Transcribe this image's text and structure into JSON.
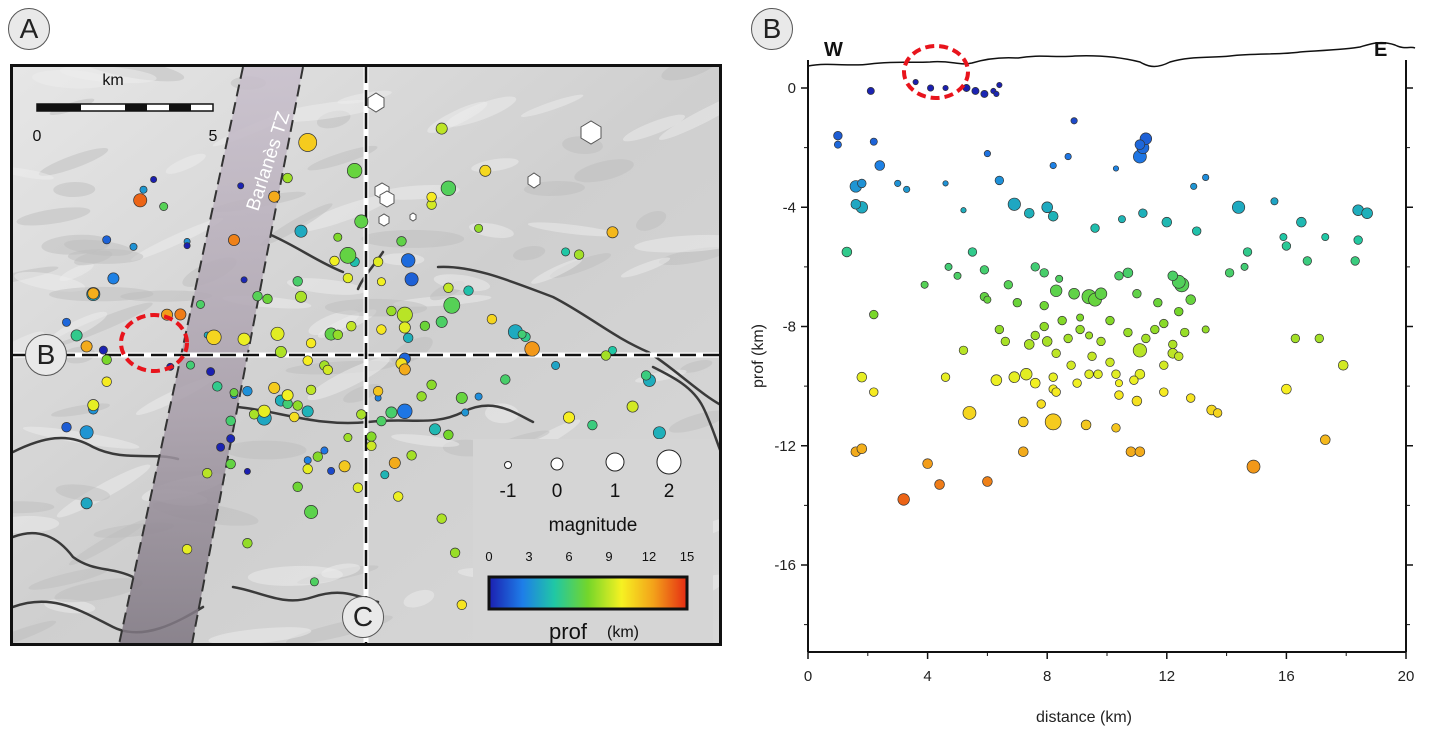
{
  "panels": {
    "a_label": "A",
    "b_label": "B"
  },
  "map": {
    "scale_unit": "km",
    "scale_ticks": [
      "0",
      "5"
    ],
    "fault_zone_label": "Barlanès TZ",
    "profile_start_label": "B",
    "profile_end_label": "C",
    "legend": {
      "magnitude_title": "magnitude",
      "magnitude_labels": [
        "-1",
        "0",
        "1",
        "2"
      ],
      "depth_ticks": [
        "0",
        "3",
        "6",
        "9",
        "12",
        "15"
      ],
      "depth_title": "prof",
      "depth_unit": "(km)"
    },
    "colors": {
      "shaded_relief": "#cfcfcf",
      "fault_zone": "#b9aebb",
      "profile_lines": "#ffffff",
      "highlight_circle": "#e8141c"
    }
  },
  "chart_data": {
    "type": "scatter",
    "title": "",
    "xlabel": "distance (km)",
    "ylabel": "prof (km)",
    "xlim": [
      0,
      20
    ],
    "ylim": [
      -19,
      1
    ],
    "xticks": [
      "0",
      "4",
      "8",
      "12",
      "16",
      "20"
    ],
    "yticks": [
      "0",
      "-4",
      "-8",
      "-12",
      "-16"
    ],
    "side_labels": {
      "west": "W",
      "east": "E"
    },
    "color_scale": {
      "variable": "depth (km)",
      "min": 0,
      "max": 15,
      "colors": [
        "#1b1fb0",
        "#1e7ee8",
        "#20c7a5",
        "#74d62a",
        "#f6f122",
        "#f3a21a",
        "#e52b13"
      ]
    },
    "points": [
      {
        "x": 1.0,
        "y": -1.6,
        "m": -0.5
      },
      {
        "x": 1.0,
        "y": -1.9,
        "m": -0.8
      },
      {
        "x": 2.2,
        "y": -1.8,
        "m": -0.8
      },
      {
        "x": 2.4,
        "y": -2.6,
        "m": -0.2
      },
      {
        "x": 1.6,
        "y": -3.3,
        "m": 0.2
      },
      {
        "x": 1.8,
        "y": -3.2,
        "m": -0.5
      },
      {
        "x": 1.6,
        "y": -3.9,
        "m": -0.2
      },
      {
        "x": 1.8,
        "y": -4.0,
        "m": 0.2
      },
      {
        "x": 1.3,
        "y": -5.5,
        "m": -0.2
      },
      {
        "x": 3.0,
        "y": -3.2,
        "m": -1.0
      },
      {
        "x": 3.3,
        "y": -3.4,
        "m": -1.0
      },
      {
        "x": 4.6,
        "y": -3.2,
        "m": -1.2
      },
      {
        "x": 5.2,
        "y": -4.1,
        "m": -1.2
      },
      {
        "x": 6.4,
        "y": -3.1,
        "m": -0.5
      },
      {
        "x": 6.9,
        "y": -3.9,
        "m": 0.4
      },
      {
        "x": 7.4,
        "y": -4.2,
        "m": -0.2
      },
      {
        "x": 8.0,
        "y": -4.0,
        "m": 0.0
      },
      {
        "x": 8.2,
        "y": -4.3,
        "m": -0.2
      },
      {
        "x": 8.2,
        "y": -2.6,
        "m": -1.0
      },
      {
        "x": 8.7,
        "y": -2.3,
        "m": -1.0
      },
      {
        "x": 8.9,
        "y": -1.1,
        "m": -1.0
      },
      {
        "x": 6.0,
        "y": -2.2,
        "m": -1.0
      },
      {
        "x": 9.6,
        "y": -4.7,
        "m": -0.5
      },
      {
        "x": 10.5,
        "y": -4.4,
        "m": -0.8
      },
      {
        "x": 10.3,
        "y": -2.7,
        "m": -1.2
      },
      {
        "x": 11.1,
        "y": -2.3,
        "m": 0.5
      },
      {
        "x": 11.2,
        "y": -2.0,
        "m": 0.3
      },
      {
        "x": 11.3,
        "y": -1.7,
        "m": 0.2
      },
      {
        "x": 11.1,
        "y": -1.9,
        "m": -0.2
      },
      {
        "x": 11.2,
        "y": -4.2,
        "m": -0.5
      },
      {
        "x": 12.0,
        "y": -4.5,
        "m": -0.2
      },
      {
        "x": 12.9,
        "y": -3.3,
        "m": -1.0
      },
      {
        "x": 13.3,
        "y": -3.0,
        "m": -1.0
      },
      {
        "x": 13.0,
        "y": -4.8,
        "m": -0.5
      },
      {
        "x": 14.4,
        "y": -4.0,
        "m": 0.4
      },
      {
        "x": 14.7,
        "y": -5.5,
        "m": -0.5
      },
      {
        "x": 15.6,
        "y": -3.8,
        "m": -0.8
      },
      {
        "x": 15.9,
        "y": -5.0,
        "m": -0.8
      },
      {
        "x": 16.5,
        "y": -4.5,
        "m": -0.2
      },
      {
        "x": 16.7,
        "y": -5.8,
        "m": -0.5
      },
      {
        "x": 17.3,
        "y": -5.0,
        "m": -0.8
      },
      {
        "x": 18.4,
        "y": -4.1,
        "m": 0.0
      },
      {
        "x": 18.7,
        "y": -4.2,
        "m": 0.0
      },
      {
        "x": 18.4,
        "y": -5.1,
        "m": -0.5
      },
      {
        "x": 18.3,
        "y": -5.8,
        "m": -0.5
      },
      {
        "x": 16.0,
        "y": -5.3,
        "m": -0.5
      },
      {
        "x": 14.1,
        "y": -6.2,
        "m": -0.5
      },
      {
        "x": 14.6,
        "y": -6.0,
        "m": -0.8
      },
      {
        "x": 5.5,
        "y": -5.5,
        "m": -0.5
      },
      {
        "x": 5.9,
        "y": -6.1,
        "m": -0.5
      },
      {
        "x": 5.0,
        "y": -6.3,
        "m": -0.8
      },
      {
        "x": 4.7,
        "y": -6.0,
        "m": -0.8
      },
      {
        "x": 6.7,
        "y": -6.6,
        "m": -0.5
      },
      {
        "x": 7.6,
        "y": -6.0,
        "m": -0.5
      },
      {
        "x": 7.9,
        "y": -6.2,
        "m": -0.5
      },
      {
        "x": 8.4,
        "y": -6.4,
        "m": -0.8
      },
      {
        "x": 8.3,
        "y": -6.8,
        "m": 0.2
      },
      {
        "x": 8.9,
        "y": -6.9,
        "m": 0.0
      },
      {
        "x": 9.4,
        "y": -7.0,
        "m": 0.8
      },
      {
        "x": 9.6,
        "y": -7.1,
        "m": 0.5
      },
      {
        "x": 9.8,
        "y": -6.9,
        "m": 0.2
      },
      {
        "x": 10.4,
        "y": -6.3,
        "m": -0.5
      },
      {
        "x": 10.7,
        "y": -6.2,
        "m": -0.2
      },
      {
        "x": 11.0,
        "y": -6.9,
        "m": -0.5
      },
      {
        "x": 12.2,
        "y": -6.3,
        "m": -0.2
      },
      {
        "x": 12.4,
        "y": -6.5,
        "m": 0.5
      },
      {
        "x": 12.5,
        "y": -6.6,
        "m": 0.8
      },
      {
        "x": 12.8,
        "y": -7.1,
        "m": -0.2
      },
      {
        "x": 12.4,
        "y": -7.5,
        "m": -0.5
      },
      {
        "x": 11.7,
        "y": -7.2,
        "m": -0.5
      },
      {
        "x": 5.9,
        "y": -7.0,
        "m": -0.5
      },
      {
        "x": 6.0,
        "y": -7.1,
        "m": -0.8
      },
      {
        "x": 3.9,
        "y": -6.6,
        "m": -0.8
      },
      {
        "x": 2.2,
        "y": -7.6,
        "m": -0.5
      },
      {
        "x": 7.0,
        "y": -7.2,
        "m": -0.5
      },
      {
        "x": 7.9,
        "y": -7.3,
        "m": -0.5
      },
      {
        "x": 8.5,
        "y": -7.8,
        "m": -0.5
      },
      {
        "x": 9.1,
        "y": -7.7,
        "m": -0.8
      },
      {
        "x": 7.9,
        "y": -8.0,
        "m": -0.5
      },
      {
        "x": 7.6,
        "y": -8.3,
        "m": -0.5
      },
      {
        "x": 7.4,
        "y": -8.6,
        "m": -0.2
      },
      {
        "x": 8.0,
        "y": -8.5,
        "m": -0.2
      },
      {
        "x": 8.3,
        "y": -8.9,
        "m": -0.5
      },
      {
        "x": 8.7,
        "y": -8.4,
        "m": -0.5
      },
      {
        "x": 9.1,
        "y": -8.1,
        "m": -0.5
      },
      {
        "x": 9.4,
        "y": -8.3,
        "m": -0.8
      },
      {
        "x": 9.8,
        "y": -8.5,
        "m": -0.5
      },
      {
        "x": 10.1,
        "y": -7.8,
        "m": -0.5
      },
      {
        "x": 10.7,
        "y": -8.2,
        "m": -0.5
      },
      {
        "x": 11.1,
        "y": -8.8,
        "m": 0.6
      },
      {
        "x": 11.3,
        "y": -8.4,
        "m": -0.5
      },
      {
        "x": 11.6,
        "y": -8.1,
        "m": -0.5
      },
      {
        "x": 11.9,
        "y": -7.9,
        "m": -0.5
      },
      {
        "x": 12.2,
        "y": -8.6,
        "m": -0.5
      },
      {
        "x": 12.6,
        "y": -8.2,
        "m": -0.5
      },
      {
        "x": 13.3,
        "y": -8.1,
        "m": -0.8
      },
      {
        "x": 12.2,
        "y": -8.9,
        "m": -0.2
      },
      {
        "x": 12.4,
        "y": -9.0,
        "m": -0.5
      },
      {
        "x": 6.4,
        "y": -8.1,
        "m": -0.5
      },
      {
        "x": 6.6,
        "y": -8.5,
        "m": -0.5
      },
      {
        "x": 5.2,
        "y": -8.8,
        "m": -0.5
      },
      {
        "x": 8.8,
        "y": -9.3,
        "m": -0.5
      },
      {
        "x": 9.5,
        "y": -9.0,
        "m": -0.5
      },
      {
        "x": 10.1,
        "y": -9.2,
        "m": -0.5
      },
      {
        "x": 11.1,
        "y": -9.6,
        "m": -0.2
      },
      {
        "x": 11.9,
        "y": -9.3,
        "m": -0.5
      },
      {
        "x": 16.3,
        "y": -8.4,
        "m": -0.5
      },
      {
        "x": 17.1,
        "y": -8.4,
        "m": -0.5
      },
      {
        "x": 6.3,
        "y": -9.8,
        "m": 0.0
      },
      {
        "x": 6.9,
        "y": -9.7,
        "m": 0.0
      },
      {
        "x": 7.3,
        "y": -9.6,
        "m": 0.2
      },
      {
        "x": 7.6,
        "y": -9.9,
        "m": -0.2
      },
      {
        "x": 8.2,
        "y": -9.7,
        "m": -0.5
      },
      {
        "x": 8.2,
        "y": -10.1,
        "m": -0.5
      },
      {
        "x": 9.0,
        "y": -9.9,
        "m": -0.5
      },
      {
        "x": 9.7,
        "y": -9.6,
        "m": -0.5
      },
      {
        "x": 9.4,
        "y": -9.6,
        "m": -0.5
      },
      {
        "x": 10.3,
        "y": -9.6,
        "m": -0.5
      },
      {
        "x": 8.3,
        "y": -10.2,
        "m": -0.5
      },
      {
        "x": 10.4,
        "y": -9.9,
        "m": -0.8
      },
      {
        "x": 10.9,
        "y": -9.8,
        "m": -0.5
      },
      {
        "x": 1.8,
        "y": -9.7,
        "m": -0.2
      },
      {
        "x": 2.2,
        "y": -10.2,
        "m": -0.5
      },
      {
        "x": 4.6,
        "y": -9.7,
        "m": -0.5
      },
      {
        "x": 7.8,
        "y": -10.6,
        "m": -0.5
      },
      {
        "x": 10.4,
        "y": -10.3,
        "m": -0.5
      },
      {
        "x": 11.0,
        "y": -10.5,
        "m": -0.2
      },
      {
        "x": 11.9,
        "y": -10.2,
        "m": -0.5
      },
      {
        "x": 12.8,
        "y": -10.4,
        "m": -0.5
      },
      {
        "x": 13.5,
        "y": -10.8,
        "m": -0.2
      },
      {
        "x": 13.7,
        "y": -10.9,
        "m": -0.5
      },
      {
        "x": 16.0,
        "y": -10.1,
        "m": -0.2
      },
      {
        "x": 17.9,
        "y": -9.3,
        "m": -0.2
      },
      {
        "x": 5.4,
        "y": -10.9,
        "m": 0.5
      },
      {
        "x": 7.2,
        "y": -11.2,
        "m": -0.2
      },
      {
        "x": 8.2,
        "y": -11.2,
        "m": 1.2
      },
      {
        "x": 9.3,
        "y": -11.3,
        "m": -0.2
      },
      {
        "x": 10.3,
        "y": -11.4,
        "m": -0.5
      },
      {
        "x": 7.2,
        "y": -12.2,
        "m": -0.2
      },
      {
        "x": 10.8,
        "y": -12.2,
        "m": -0.2
      },
      {
        "x": 11.1,
        "y": -12.2,
        "m": -0.2
      },
      {
        "x": 1.6,
        "y": -12.2,
        "m": -0.2
      },
      {
        "x": 1.8,
        "y": -12.1,
        "m": -0.2
      },
      {
        "x": 17.3,
        "y": -11.8,
        "m": -0.2
      },
      {
        "x": 4.0,
        "y": -12.6,
        "m": -0.2
      },
      {
        "x": 4.4,
        "y": -13.3,
        "m": -0.2
      },
      {
        "x": 6.0,
        "y": -13.2,
        "m": -0.2
      },
      {
        "x": 3.2,
        "y": -13.8,
        "m": 0.2
      },
      {
        "x": 14.9,
        "y": -12.7,
        "m": 0.5
      },
      {
        "x": 2.1,
        "y": -0.1,
        "m": -0.8
      },
      {
        "x": 3.6,
        "y": 0.2,
        "m": -1.2
      },
      {
        "x": 4.1,
        "y": 0.0,
        "m": -1.0
      },
      {
        "x": 4.6,
        "y": 0.0,
        "m": -1.2
      },
      {
        "x": 5.3,
        "y": 0.0,
        "m": -0.8
      },
      {
        "x": 5.6,
        "y": -0.1,
        "m": -0.8
      },
      {
        "x": 5.9,
        "y": -0.2,
        "m": -0.8
      },
      {
        "x": 6.2,
        "y": -0.1,
        "m": -1.2
      },
      {
        "x": 6.4,
        "y": 0.1,
        "m": -1.2
      },
      {
        "x": 6.3,
        "y": -0.2,
        "m": -1.2
      }
    ]
  }
}
